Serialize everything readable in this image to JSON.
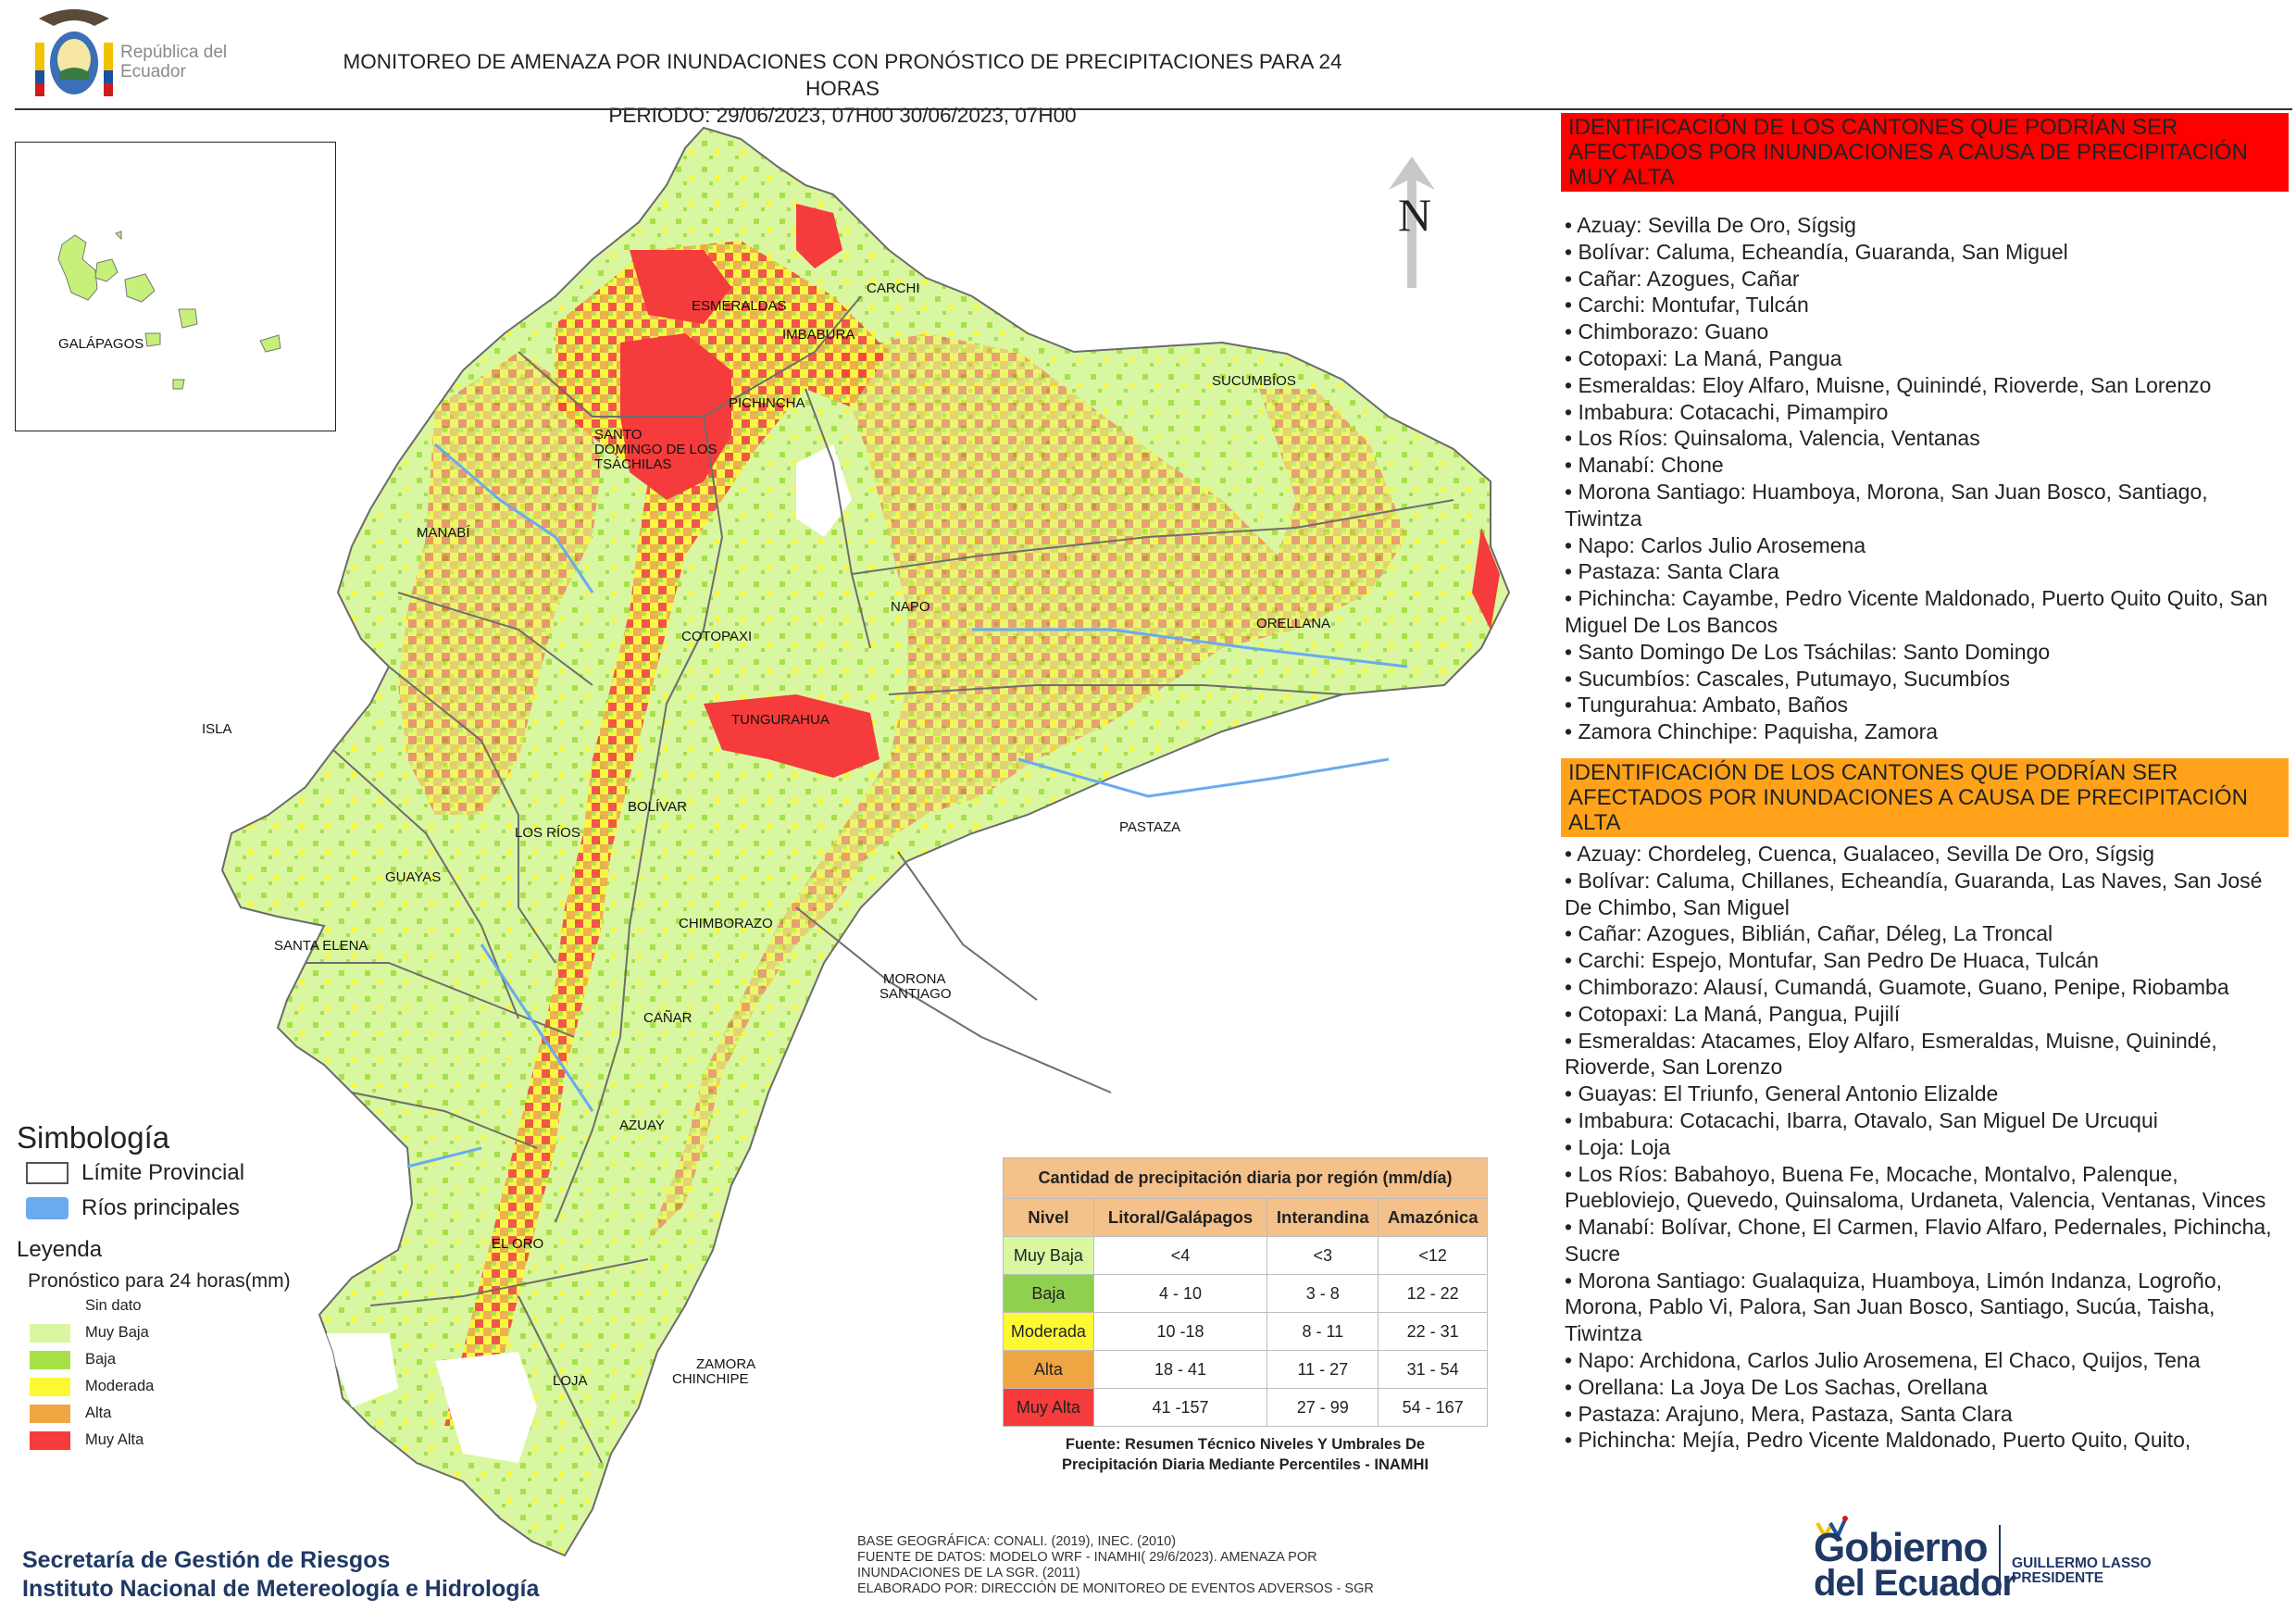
{
  "header": {
    "logo_text": "República del Ecuador",
    "title_line1": "MONITOREO DE AMENAZA POR INUNDACIONES  CON PRONÓSTICO DE  PRECIPITACIONES PARA 24 HORAS",
    "title_line2": "PERIODO: 29/06/2023, 07H00 30/06/2023, 07H00"
  },
  "map": {
    "north_label": "N",
    "inset_label": "GALÁPAGOS",
    "province_labels": {
      "esmeraldas": "ESMERALDAS",
      "carchi": "CARCHI",
      "imbabura": "IMBABURA",
      "sucumbios": "SUCUMBÍOS",
      "pichincha": "PICHINCHA",
      "santo_domingo_1": "SANTO",
      "santo_domingo_2": "DOMINGO DE LOS",
      "santo_domingo_3": "TSÁCHILAS",
      "manabi": "MANABÍ",
      "napo": "NAPO",
      "orellana": "ORELLANA",
      "cotopaxi": "COTOPAXI",
      "isla": "ISLA",
      "tungurahua": "TUNGURAHUA",
      "bolivar": "BOLÍVAR",
      "los_rios": "LOS RÍOS",
      "pastaza": "PASTAZA",
      "guayas": "GUAYAS",
      "chimborazo": "CHIMBORAZO",
      "santa_elena": "SANTA ELENA",
      "morona_1": "MORONA",
      "morona_2": "SANTIAGO",
      "canar": "CAÑAR",
      "azuay": "AZUAY",
      "el_oro": "EL ORO",
      "loja": "LOJA",
      "zamora_1": "ZAMORA",
      "zamora_2": "CHINCHIPE"
    }
  },
  "colors": {
    "sin_dato": "#ffffff",
    "muy_baja": "#d9f7a0",
    "baja": "#a8e04a",
    "moderada": "#fdf734",
    "alta": "#f0a543",
    "muy_alta": "#f53b3b",
    "rivers": "#6aaaf0"
  },
  "legend": {
    "symbology_title": "Simbología",
    "provincial_limit": "Límite Provincial",
    "main_rivers": "Ríos principales",
    "legend_title": "Leyenda",
    "forecast_title": "Pronóstico para 24 horas(mm)",
    "classes": [
      "Sin dato",
      "Muy Baja",
      "Baja",
      "Moderada",
      "Alta",
      "Muy Alta"
    ]
  },
  "threshold_table": {
    "title": "Cantidad de precipitación diaria por región (mm/día)",
    "headers": [
      "Nivel",
      "Litoral/Galápagos",
      "Interandina",
      "Amazónica"
    ],
    "rows": [
      {
        "level": "Muy Baja",
        "litoral": "<4",
        "interandina": "<3",
        "amazonica": "<12"
      },
      {
        "level": "Baja",
        "litoral": "4 - 10",
        "interandina": "3 - 8",
        "amazonica": "12 - 22"
      },
      {
        "level": "Moderada",
        "litoral": "10 -18",
        "interandina": "8 - 11",
        "amazonica": "22 - 31"
      },
      {
        "level": "Alta",
        "litoral": "18 - 41",
        "interandina": "11 - 27",
        "amazonica": "31 - 54"
      },
      {
        "level": "Muy Alta",
        "litoral": "41 -157",
        "interandina": "27 - 99",
        "amazonica": "54 - 167"
      }
    ],
    "source_line1": "Fuente: Resumen Técnico Niveles Y Umbrales De",
    "source_line2": "Precipitación Diaria Mediante Percentiles - INAMHI"
  },
  "right_panel": {
    "very_high_header": "IDENTIFICACIÓN DE LOS CANTONES QUE PODRÍAN SER AFECTADOS POR INUNDACIONES  A CAUSA DE PRECIPITACIÓN MUY ALTA",
    "very_high_items": [
      "Azuay: Sevilla De Oro, Sígsig",
      "Bolívar: Caluma, Echeandía, Guaranda, San Miguel",
      "Cañar: Azogues, Cañar",
      "Carchi: Montufar, Tulcán",
      "Chimborazo: Guano",
      "Cotopaxi: La Maná, Pangua",
      "Esmeraldas: Eloy Alfaro, Muisne, Quinindé, Rioverde, San Lorenzo",
      "Imbabura: Cotacachi, Pimampiro",
      "Los Ríos: Quinsaloma, Valencia, Ventanas",
      "Manabí: Chone",
      "Morona Santiago: Huamboya, Morona, San Juan Bosco, Santiago, Tiwintza",
      "Napo: Carlos Julio Arosemena",
      "Pastaza: Santa Clara",
      "Pichincha: Cayambe, Pedro Vicente Maldonado, Puerto Quito Quito, San Miguel De Los Bancos",
      "Santo Domingo De Los Tsáchilas: Santo Domingo",
      "Sucumbíos: Cascales, Putumayo, Sucumbíos",
      "Tungurahua: Ambato, Baños",
      "Zamora Chinchipe: Paquisha, Zamora"
    ],
    "high_header": "IDENTIFICACIÓN DE LOS CANTONES QUE  PODRÍAN SER AFECTADOS POR INUNDACIONES  A CAUSA DE PRECIPITACIÓN ALTA",
    "high_items": [
      "Azuay: Chordeleg, Cuenca, Gualaceo, Sevilla De Oro, Sígsig",
      "Bolívar: Caluma, Chillanes, Echeandía, Guaranda, Las Naves, San José De Chimbo, San Miguel",
      "Cañar: Azogues, Biblián, Cañar, Déleg, La Troncal",
      "Carchi: Espejo, Montufar, San Pedro De Huaca, Tulcán",
      "Chimborazo: Alausí, Cumandá, Guamote, Guano, Penipe, Riobamba",
      "Cotopaxi: La Maná, Pangua, Pujilí",
      "Esmeraldas: Atacames, Eloy Alfaro, Esmeraldas, Muisne, Quinindé, Rioverde, San Lorenzo",
      "Guayas: El Triunfo, General Antonio Elizalde",
      "Imbabura: Cotacachi, Ibarra, Otavalo, San Miguel De Urcuqui",
      "Loja: Loja",
      "Los Ríos: Babahoyo, Buena Fe, Mocache, Montalvo, Palenque, Puebloviejo, Quevedo, Quinsaloma, Urdaneta, Valencia, Ventanas, Vinces",
      "Manabí: Bolívar, Chone, El Carmen, Flavio Alfaro, Pedernales, Pichincha, Sucre",
      "Morona Santiago: Gualaquiza, Huamboya, Limón Indanza, Logroño, Morona, Pablo Vi, Palora, San Juan Bosco, Santiago, Sucúa, Taisha, Tiwintza",
      "Napo: Archidona, Carlos Julio Arosemena, El Chaco, Quijos, Tena",
      "Orellana: La Joya De Los Sachas, Orellana",
      "Pastaza: Arajuno, Mera, Pastaza, Santa Clara",
      "Pichincha: Mejía, Pedro Vicente Maldonado, Puerto Quito, Quito,"
    ]
  },
  "footer": {
    "agency_line1": "Secretaría de Gestión de Riesgos",
    "agency_line2": "Instituto Nacional de Metereología e Hidrología",
    "notes": [
      "BASE GEOGRÁFICA: CONALI. (2019), INEC. (2010)",
      "FUENTE DE DATOS: MODELO WRF - INAMHI( 29/6/2023).  AMENAZA POR INUNDACIONES DE LA SGR. (2011)",
      "ELABORADO POR: DIRECCIÓN DE MONITOREO DE EVENTOS ADVERSOS - SGR"
    ],
    "gob_line1": "Gobierno",
    "gob_line2": "del Ecuador",
    "president_line1": "GUILLERMO LASSO",
    "president_line2": "PRESIDENTE"
  }
}
